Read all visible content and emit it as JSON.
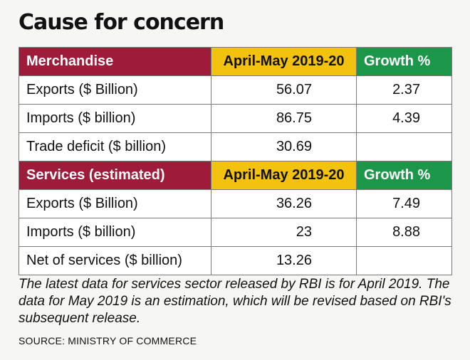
{
  "title": "Cause for concern",
  "chart_data": {
    "type": "table",
    "title": "Cause for concern",
    "tables": [
      {
        "section": "Merchandise",
        "period_header": "April-May 2019-20",
        "growth_header": "Growth %",
        "rows": [
          {
            "label": "Exports ($ Billion)",
            "value": "56.07",
            "growth": "2.37"
          },
          {
            "label": "Imports ($ billion)",
            "value": "86.75",
            "growth": "4.39"
          },
          {
            "label": "Trade deficit ($ billion)",
            "value": "30.69",
            "growth": ""
          }
        ]
      },
      {
        "section": "Services (estimated)",
        "period_header": "April-May 2019-20",
        "growth_header": "Growth %",
        "rows": [
          {
            "label": "Exports ($ Billion)",
            "value": "36.26",
            "growth": "7.49"
          },
          {
            "label": "Imports ($ billion)",
            "value": "23",
            "growth": "8.88"
          },
          {
            "label": "Net of services ($ billion)",
            "value": "13.26",
            "growth": ""
          }
        ]
      }
    ]
  },
  "note": "The latest data for services sector released by RBI is for April 2019. The data for May 2019 is an estimation, which will be revised based on RBI's subsequent release.",
  "source": "SOURCE: MINISTRY OF COMMERCE",
  "colors": {
    "section_header": "#9e1c3a",
    "period_header": "#f2c20e",
    "growth_header": "#1c9648"
  }
}
